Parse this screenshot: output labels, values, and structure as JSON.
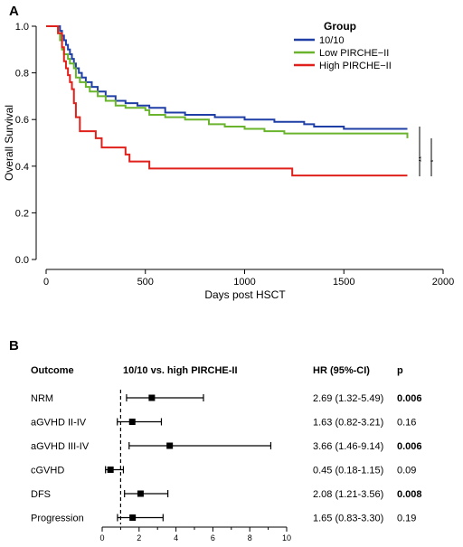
{
  "chart_data": [
    {
      "type": "line",
      "panel": "A",
      "xlabel": "Days post HSCT",
      "ylabel": "Overall Survival",
      "xlim": [
        0,
        2000
      ],
      "ylim": [
        0.0,
        1.0
      ],
      "xticks": [
        "0",
        "500",
        "1000",
        "1500",
        "2000"
      ],
      "yticks": [
        "0.0",
        "0.2",
        "0.4",
        "0.6",
        "0.8",
        "1.0"
      ],
      "legend_title": "Group",
      "legend_position": "top-right",
      "significance_marks": [
        "**",
        "*"
      ],
      "series": [
        {
          "name": "10/10",
          "color": "#1f3fa6",
          "points": [
            [
              0,
              1.0
            ],
            [
              60,
              1.0
            ],
            [
              70,
              0.98
            ],
            [
              80,
              0.96
            ],
            [
              90,
              0.94
            ],
            [
              100,
              0.92
            ],
            [
              110,
              0.9
            ],
            [
              120,
              0.88
            ],
            [
              130,
              0.86
            ],
            [
              140,
              0.84
            ],
            [
              150,
              0.82
            ],
            [
              165,
              0.8
            ],
            [
              180,
              0.78
            ],
            [
              200,
              0.76
            ],
            [
              230,
              0.74
            ],
            [
              260,
              0.72
            ],
            [
              300,
              0.7
            ],
            [
              350,
              0.68
            ],
            [
              400,
              0.67
            ],
            [
              460,
              0.66
            ],
            [
              520,
              0.65
            ],
            [
              600,
              0.63
            ],
            [
              700,
              0.62
            ],
            [
              850,
              0.61
            ],
            [
              1000,
              0.6
            ],
            [
              1150,
              0.59
            ],
            [
              1300,
              0.58
            ],
            [
              1350,
              0.57
            ],
            [
              1500,
              0.56
            ],
            [
              1820,
              0.56
            ]
          ]
        },
        {
          "name": "Low PIRCHE−II",
          "color": "#6ab42d",
          "points": [
            [
              0,
              1.0
            ],
            [
              50,
              1.0
            ],
            [
              60,
              0.97
            ],
            [
              70,
              0.94
            ],
            [
              80,
              0.9
            ],
            [
              90,
              0.88
            ],
            [
              110,
              0.86
            ],
            [
              120,
              0.84
            ],
            [
              140,
              0.82
            ],
            [
              150,
              0.78
            ],
            [
              170,
              0.76
            ],
            [
              200,
              0.74
            ],
            [
              220,
              0.72
            ],
            [
              260,
              0.7
            ],
            [
              300,
              0.68
            ],
            [
              350,
              0.66
            ],
            [
              400,
              0.65
            ],
            [
              500,
              0.64
            ],
            [
              520,
              0.62
            ],
            [
              600,
              0.61
            ],
            [
              700,
              0.6
            ],
            [
              820,
              0.58
            ],
            [
              900,
              0.57
            ],
            [
              1000,
              0.56
            ],
            [
              1100,
              0.55
            ],
            [
              1200,
              0.54
            ],
            [
              1750,
              0.54
            ],
            [
              1820,
              0.52
            ]
          ]
        },
        {
          "name": "High PIRCHE−II",
          "color": "#e0201b",
          "points": [
            [
              0,
              1.0
            ],
            [
              50,
              1.0
            ],
            [
              60,
              0.97
            ],
            [
              80,
              0.91
            ],
            [
              90,
              0.85
            ],
            [
              100,
              0.82
            ],
            [
              110,
              0.79
            ],
            [
              120,
              0.76
            ],
            [
              130,
              0.73
            ],
            [
              140,
              0.67
            ],
            [
              150,
              0.61
            ],
            [
              170,
              0.55
            ],
            [
              250,
              0.52
            ],
            [
              280,
              0.48
            ],
            [
              400,
              0.45
            ],
            [
              420,
              0.42
            ],
            [
              520,
              0.39
            ],
            [
              1230,
              0.39
            ],
            [
              1240,
              0.36
            ],
            [
              1820,
              0.36
            ]
          ]
        }
      ]
    },
    {
      "type": "forest",
      "panel": "B",
      "headers": {
        "outcome": "Outcome",
        "comparison": "10/10 vs. high PIRCHE-II",
        "hr": "HR (95%-CI)",
        "p": "p"
      },
      "xlim": [
        0,
        10
      ],
      "xticks": [
        "0",
        "2",
        "4",
        "6",
        "8",
        "10"
      ],
      "reference_line": 1,
      "rows": [
        {
          "outcome": "NRM",
          "hr": 2.69,
          "lo": 1.32,
          "hi": 5.49,
          "hr_text": "2.69 (1.32-5.49)",
          "p": "0.006",
          "significant": true
        },
        {
          "outcome": "aGVHD II-IV",
          "hr": 1.63,
          "lo": 0.82,
          "hi": 3.21,
          "hr_text": "1.63 (0.82-3.21)",
          "p": "0.16",
          "significant": false
        },
        {
          "outcome": "aGVHD III-IV",
          "hr": 3.66,
          "lo": 1.46,
          "hi": 9.14,
          "hr_text": "3.66 (1.46-9.14)",
          "p": "0.006",
          "significant": true
        },
        {
          "outcome": "cGVHD",
          "hr": 0.45,
          "lo": 0.18,
          "hi": 1.15,
          "hr_text": "0.45 (0.18-1.15)",
          "p": "0.09",
          "significant": false
        },
        {
          "outcome": "DFS",
          "hr": 2.08,
          "lo": 1.21,
          "hi": 3.56,
          "hr_text": "2.08 (1.21-3.56)",
          "p": "0.008",
          "significant": true
        },
        {
          "outcome": "Progression",
          "hr": 1.65,
          "lo": 0.83,
          "hi": 3.3,
          "hr_text": "1.65 (0.83-3.30)",
          "p": "0.19",
          "significant": false
        }
      ]
    }
  ]
}
